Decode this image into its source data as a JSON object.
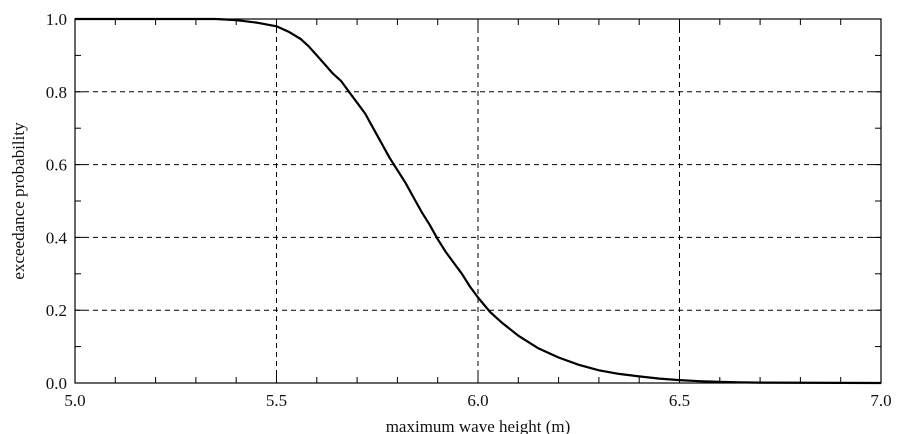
{
  "chart_data": {
    "type": "line",
    "title": "",
    "xlabel": "maximum wave height (m)",
    "ylabel": "exceedance probability",
    "xlim": [
      5.0,
      7.0
    ],
    "ylim": [
      0.0,
      1.0
    ],
    "x_ticks": [
      5.0,
      5.5,
      6.0,
      6.5,
      7.0
    ],
    "x_tick_labels": [
      "5.0",
      "5.5",
      "6.0",
      "6.5",
      "7.0"
    ],
    "y_ticks": [
      0.0,
      0.2,
      0.4,
      0.6,
      0.8,
      1.0
    ],
    "y_tick_labels": [
      "0.0",
      "0.2",
      "0.4",
      "0.6",
      "0.8",
      "1.0"
    ],
    "grid": "dashed at major ticks",
    "legend": "none",
    "series": [
      {
        "color": "#000000",
        "x": [
          5.0,
          5.35,
          5.4,
          5.45,
          5.5,
          5.53,
          5.56,
          5.58,
          5.6,
          5.62,
          5.64,
          5.66,
          5.68,
          5.7,
          5.72,
          5.74,
          5.76,
          5.78,
          5.8,
          5.82,
          5.84,
          5.86,
          5.88,
          5.9,
          5.92,
          5.94,
          5.96,
          5.98,
          6.0,
          6.03,
          6.06,
          6.1,
          6.15,
          6.2,
          6.25,
          6.3,
          6.35,
          6.4,
          6.45,
          6.5,
          6.55,
          6.6,
          6.65,
          6.7,
          7.0
        ],
        "y": [
          1.0,
          1.0,
          0.997,
          0.99,
          0.98,
          0.965,
          0.945,
          0.925,
          0.9,
          0.875,
          0.85,
          0.83,
          0.8,
          0.77,
          0.74,
          0.7,
          0.66,
          0.62,
          0.585,
          0.55,
          0.51,
          0.47,
          0.435,
          0.395,
          0.36,
          0.33,
          0.3,
          0.265,
          0.235,
          0.195,
          0.165,
          0.13,
          0.095,
          0.07,
          0.05,
          0.035,
          0.025,
          0.018,
          0.012,
          0.008,
          0.005,
          0.003,
          0.002,
          0.001,
          0.0
        ]
      }
    ]
  }
}
